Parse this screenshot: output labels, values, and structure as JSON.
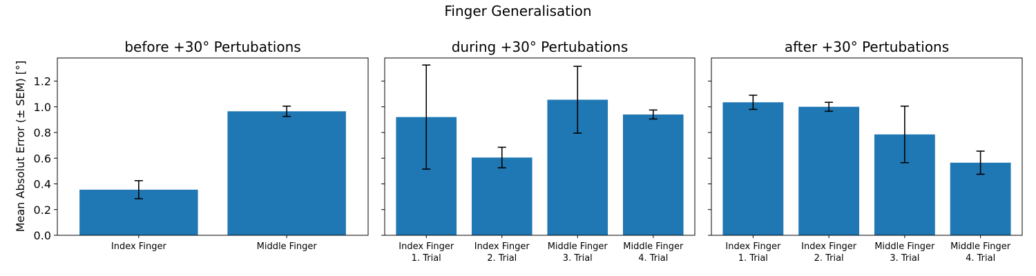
{
  "figure_title": "Finger Generalisation",
  "y_axis_label": "Mean Absolut Error (± SEM) [°]",
  "chart_data": [
    {
      "type": "bar",
      "title": "before +30° Pertubations",
      "xlabel": "",
      "ylabel": "Mean Absolut Error (± SEM) [°]",
      "ylim": [
        0,
        1.38
      ],
      "yticks": [
        "0.0",
        "0.2",
        "0.4",
        "0.6",
        "0.8",
        "1.0",
        "1.2"
      ],
      "categories": [
        "Index Finger",
        "Middle Finger"
      ],
      "values": [
        0.355,
        0.965
      ],
      "errors": [
        0.07,
        0.04
      ],
      "bar_color": "#1f77b4"
    },
    {
      "type": "bar",
      "title": "during +30° Pertubations",
      "xlabel": "",
      "ylim": [
        0,
        1.38
      ],
      "categories": [
        "Index Finger\n1. Trial",
        "Index Finger\n2. Trial",
        "Middle Finger\n3. Trial",
        "Middle Finger\n4. Trial"
      ],
      "values": [
        0.92,
        0.605,
        1.055,
        0.94
      ],
      "errors": [
        0.405,
        0.08,
        0.26,
        0.035
      ],
      "bar_color": "#1f77b4"
    },
    {
      "type": "bar",
      "title": "after +30° Pertubations",
      "xlabel": "",
      "ylim": [
        0,
        1.38
      ],
      "categories": [
        "Index Finger\n1. Trial",
        "Index Finger\n2. Trial",
        "Middle Finger\n3. Trial",
        "Middle Finger\n4. Trial"
      ],
      "values": [
        1.035,
        1.0,
        0.785,
        0.565
      ],
      "errors": [
        0.055,
        0.035,
        0.22,
        0.09
      ],
      "bar_color": "#1f77b4"
    }
  ]
}
